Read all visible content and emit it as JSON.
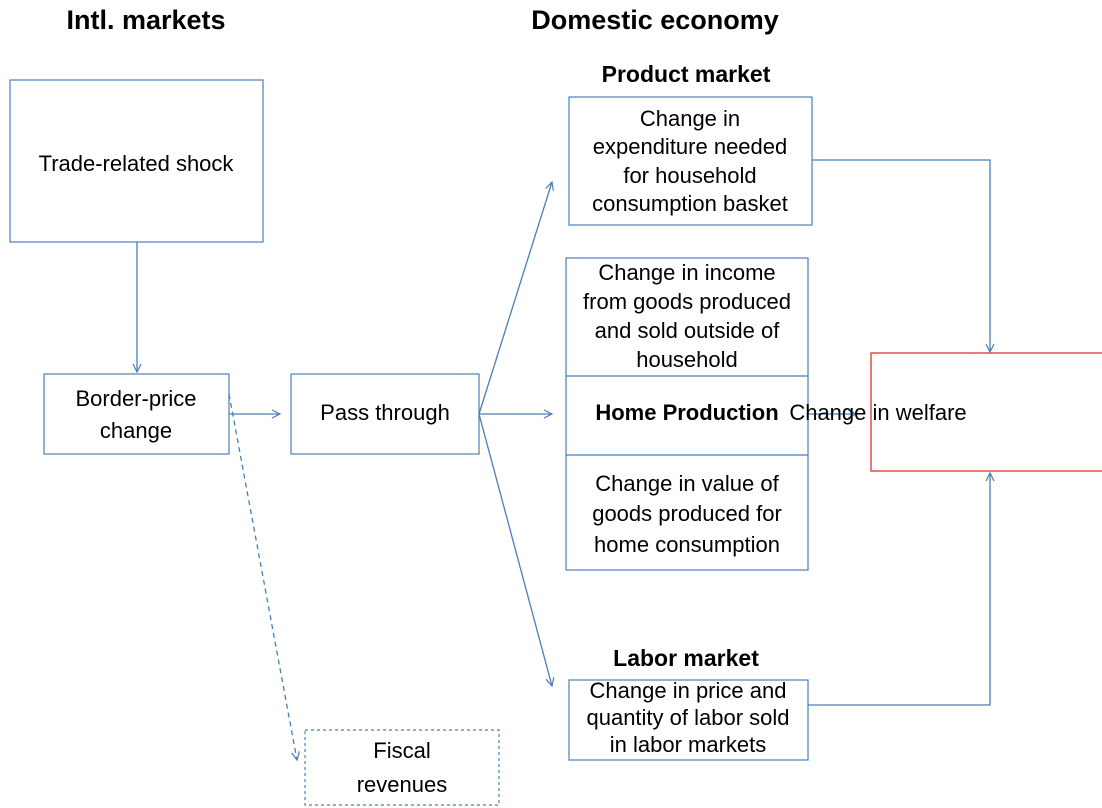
{
  "headings": {
    "intl": "Intl. markets",
    "domestic": "Domestic economy",
    "product_market": "Product market",
    "labor_market": "Labor market"
  },
  "nodes": {
    "shock": [
      "Trade-related shock"
    ],
    "border": [
      "Border-price",
      "change"
    ],
    "pass": [
      "Pass through"
    ],
    "product": [
      "Change in",
      "expenditure needed",
      "for household",
      "consumption basket"
    ],
    "income": [
      "Change in income",
      "from goods produced",
      "and sold outside of",
      "household"
    ],
    "home": [
      "Home Production"
    ],
    "value": [
      "Change in value of",
      "goods produced for",
      "home consumption"
    ],
    "welfare": [
      "Change in welfare"
    ],
    "labor": [
      "Change in price and",
      "quantity of labor sold",
      "in labor markets"
    ],
    "fiscal": [
      "Fiscal",
      "revenues"
    ]
  }
}
